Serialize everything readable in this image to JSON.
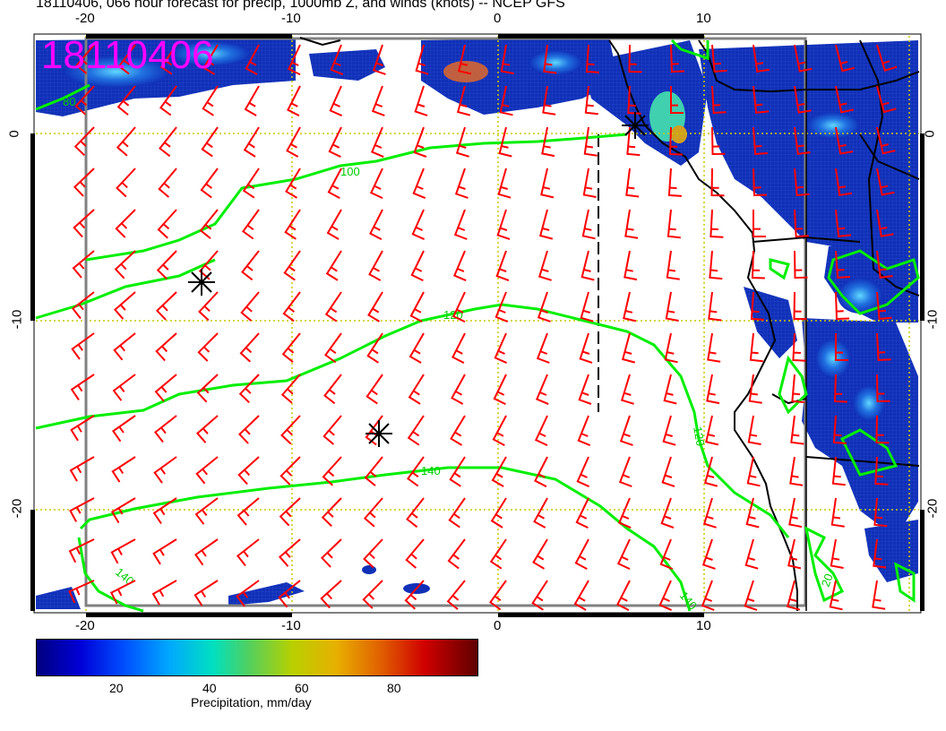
{
  "header": {
    "title": "18110406, 066 hour forecast for precip, 1000mb Z, and winds (knots) -- NCEP GFS",
    "date_stamp": "18110406"
  },
  "axes": {
    "top_lon_labels": [
      "-20",
      "-10",
      "0",
      "10"
    ],
    "bottom_lon_labels": [
      "-20",
      "-10",
      "0",
      "10"
    ],
    "left_lat_labels": [
      "0",
      "-10",
      "-20"
    ],
    "right_lat_labels": [
      "0",
      "-10",
      "-20"
    ]
  },
  "contours": {
    "color": "#00ee00",
    "labels": [
      "100",
      "120",
      "120",
      "140",
      "140",
      "140",
      "80",
      "20"
    ]
  },
  "colorbar": {
    "tick_labels": [
      "20",
      "40",
      "60",
      "80"
    ],
    "label": "Precipitation, mm/day",
    "range": [
      0,
      100
    ]
  },
  "colors": {
    "wind_barbs": "#ff0000",
    "coastline": "#000000",
    "grid": "#c8c800",
    "date_stamp": "#ff00ff"
  }
}
